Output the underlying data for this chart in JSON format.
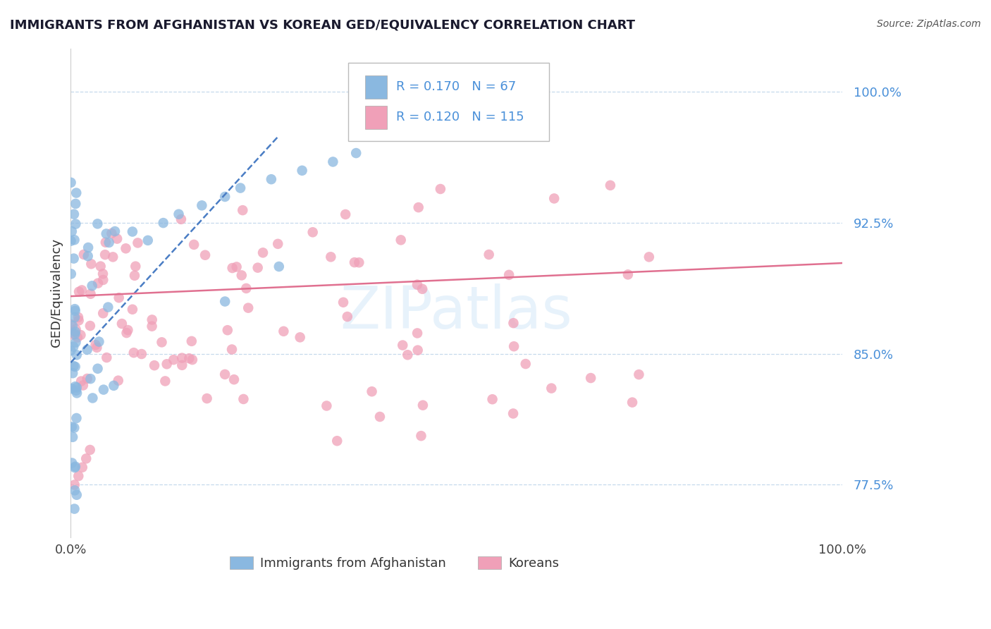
{
  "title": "IMMIGRANTS FROM AFGHANISTAN VS KOREAN GED/EQUIVALENCY CORRELATION CHART",
  "source": "Source: ZipAtlas.com",
  "ylabel": "GED/Equivalency",
  "yticks": [
    77.5,
    85.0,
    92.5,
    100.0
  ],
  "xmin": 0.0,
  "xmax": 1.0,
  "ymin": 74.5,
  "ymax": 102.5,
  "afghanistan_R": 0.17,
  "afghanistan_N": 67,
  "korean_R": 0.12,
  "korean_N": 115,
  "afghanistan_color": "#8ab8e0",
  "korean_color": "#f0a0b8",
  "afghanistan_trend_color": "#4a7dc4",
  "korean_trend_color": "#e07090",
  "watermark": "ZIPatlas",
  "legend_label_1": "Immigrants from Afghanistan",
  "legend_label_2": "Koreans",
  "ytick_color": "#4a90d9",
  "title_color": "#1a1a2e",
  "source_color": "#555555",
  "grid_color": "#b8d0e8",
  "afg_trend_x": [
    0.0,
    0.27
  ],
  "afg_trend_y": [
    84.5,
    97.5
  ],
  "kor_trend_x": [
    0.0,
    1.0
  ],
  "kor_trend_y": [
    88.3,
    90.2
  ]
}
